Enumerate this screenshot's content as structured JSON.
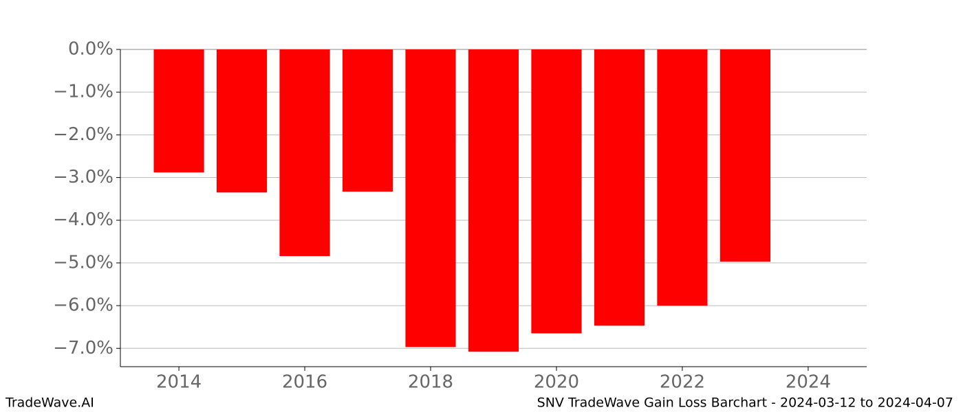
{
  "chart_data": {
    "type": "bar",
    "x": [
      2014,
      2015,
      2016,
      2017,
      2018,
      2019,
      2020,
      2021,
      2022,
      2023
    ],
    "values": [
      -2.88,
      -3.35,
      -4.84,
      -3.33,
      -6.97,
      -7.08,
      -6.65,
      -6.47,
      -6.0,
      -4.97
    ],
    "color": "#ff0000",
    "xlim": [
      2013.07,
      2024.93
    ],
    "xticks": [
      2014,
      2016,
      2018,
      2020,
      2022,
      2024
    ],
    "ylim": [
      -7.43,
      0
    ],
    "yticks": [
      {
        "value": 0,
        "label": "0.0%"
      },
      {
        "value": -1,
        "label": "−1.0%"
      },
      {
        "value": -2,
        "label": "−2.0%"
      },
      {
        "value": -3,
        "label": "−3.0%"
      },
      {
        "value": -4,
        "label": "−4.0%"
      },
      {
        "value": -5,
        "label": "−5.0%"
      },
      {
        "value": -6,
        "label": "−6.0%"
      },
      {
        "value": -7,
        "label": "−7.0%"
      }
    ],
    "grid": true,
    "footer_left": "TradeWave.AI",
    "footer_right": "SNV TradeWave Gain Loss Barchart - 2024-03-12 to 2024-04-07"
  }
}
